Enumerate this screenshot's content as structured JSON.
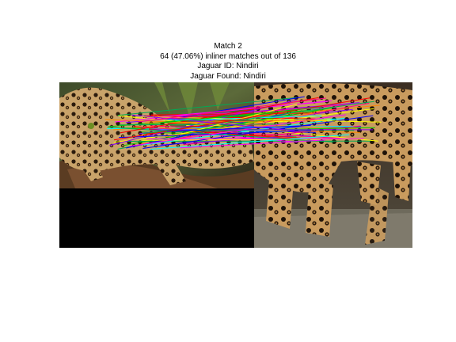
{
  "title": {
    "line1": "Match 2",
    "line2": "64 (47.06%) inliner matches out of 136",
    "line3": "Jaguar ID: Nindiri",
    "line4": "Jaguar Found: Nindiri"
  },
  "match": {
    "inliers": 64,
    "total": 136
  },
  "colors": {
    "pad": "#000000",
    "line_palette": [
      "#ff0000",
      "#00cc00",
      "#0000ff",
      "#ff00ff",
      "#00ffff",
      "#ffff00",
      "#ff8800",
      "#8800ff",
      "#00aa55",
      "#ff0088"
    ]
  }
}
